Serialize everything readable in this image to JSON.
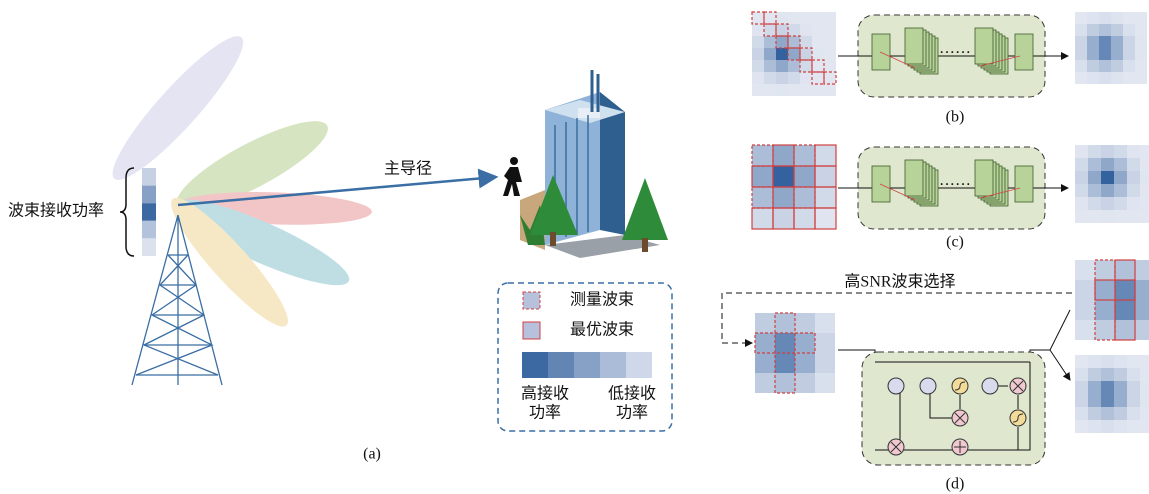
{
  "panel_a": {
    "label": "(a)",
    "path_label": "主导径",
    "power_label": "波束接收功率"
  },
  "legend": {
    "measured": "测量波束",
    "optimal": "最优波束",
    "high": [
      "高接收",
      "功率"
    ],
    "low": [
      "低接收",
      "功率"
    ]
  },
  "panel_b": {
    "label": "(b)"
  },
  "panel_c": {
    "label": "(c)"
  },
  "panel_d": {
    "label": "(d)",
    "selection_label": "高SNR波束选择"
  }
}
